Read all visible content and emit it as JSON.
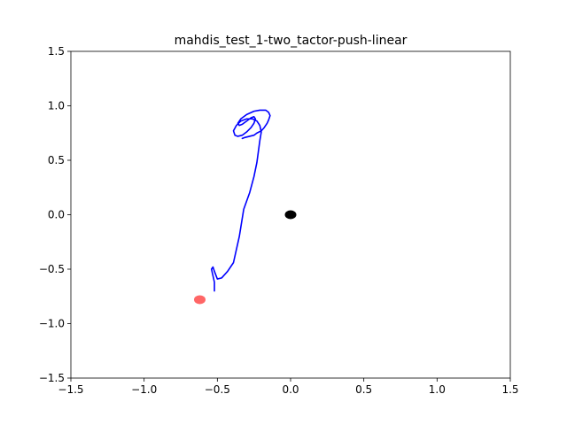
{
  "chart_data": {
    "type": "line",
    "title": "mahdis_test_1-two_tactor-push-linear",
    "xlabel": "",
    "ylabel": "",
    "xlim": [
      -1.5,
      1.5
    ],
    "ylim": [
      -1.5,
      1.5
    ],
    "x_ticks": [
      -1.5,
      -1.0,
      -0.5,
      0.0,
      0.5,
      1.0,
      1.5
    ],
    "x_tick_labels": [
      "−1.5",
      "−1.0",
      "−0.5",
      "0.0",
      "0.5",
      "1.0",
      "1.5"
    ],
    "y_ticks": [
      -1.5,
      -1.0,
      -0.5,
      0.0,
      0.5,
      1.0,
      1.5
    ],
    "y_tick_labels": [
      "−1.5",
      "−1.0",
      "−0.5",
      "0.0",
      "0.5",
      "1.0",
      "1.5"
    ],
    "grid": false,
    "series": [
      {
        "color": "#0000ff",
        "x": [
          -0.52,
          -0.52,
          -0.53,
          -0.54,
          -0.53,
          -0.52,
          -0.5,
          -0.47,
          -0.43,
          -0.39,
          -0.35,
          -0.32,
          -0.28,
          -0.25,
          -0.23,
          -0.22,
          -0.21,
          -0.2,
          -0.21,
          -0.23,
          -0.26,
          -0.3,
          -0.34,
          -0.37,
          -0.39,
          -0.38,
          -0.36,
          -0.33,
          -0.3,
          -0.27,
          -0.25,
          -0.24,
          -0.25,
          -0.27,
          -0.3,
          -0.33,
          -0.35,
          -0.36,
          -0.34,
          -0.3,
          -0.25,
          -0.21,
          -0.17,
          -0.15,
          -0.14,
          -0.15,
          -0.16,
          -0.18,
          -0.2,
          -0.23,
          -0.25,
          -0.28,
          -0.31,
          -0.33
        ],
        "y": [
          -0.7,
          -0.62,
          -0.56,
          -0.5,
          -0.48,
          -0.52,
          -0.59,
          -0.58,
          -0.52,
          -0.44,
          -0.2,
          0.05,
          0.2,
          0.35,
          0.48,
          0.58,
          0.68,
          0.76,
          0.82,
          0.86,
          0.88,
          0.88,
          0.86,
          0.82,
          0.77,
          0.73,
          0.72,
          0.73,
          0.76,
          0.8,
          0.84,
          0.88,
          0.9,
          0.89,
          0.86,
          0.83,
          0.82,
          0.84,
          0.88,
          0.92,
          0.95,
          0.96,
          0.96,
          0.94,
          0.91,
          0.87,
          0.84,
          0.8,
          0.77,
          0.75,
          0.73,
          0.72,
          0.71,
          0.7
        ]
      }
    ],
    "markers": [
      {
        "x": 0.0,
        "y": 0.0,
        "color": "#000000"
      },
      {
        "x": -0.62,
        "y": -0.78,
        "color": "#ff6666"
      }
    ]
  }
}
